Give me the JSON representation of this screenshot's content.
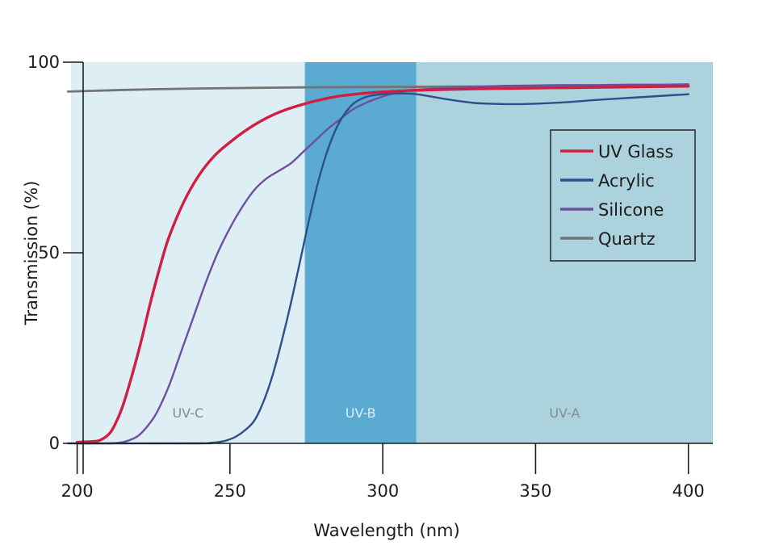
{
  "chart_data": {
    "type": "line",
    "title": "",
    "xlabel": "Wavelength (nm)",
    "ylabel": "Transmission (%)",
    "xlim": [
      198,
      408
    ],
    "ylim": [
      0,
      100
    ],
    "xticks": [
      200,
      250,
      300,
      350,
      400
    ],
    "yticks": [
      0,
      50,
      100
    ],
    "grid": false,
    "legend_position": "right",
    "regions": [
      {
        "label": "UV-C",
        "x_start": 198,
        "x_end": 274.5,
        "fill": "#ddeef5",
        "text_color": "#8a8a8a"
      },
      {
        "label": "UV-B",
        "x_start": 274.5,
        "x_end": 311,
        "fill": "#5aaad2",
        "text_color": "#ddeef6"
      },
      {
        "label": "UV-A",
        "x_start": 311,
        "x_end": 408,
        "fill": "#abd2dd",
        "text_color": "#7e8f95"
      }
    ],
    "series": [
      {
        "name": "UV Glass",
        "color": "#d01f41",
        "x": [
          200,
          205,
          207,
          209,
          211,
          213,
          215,
          218,
          221,
          224,
          227,
          230,
          235,
          240,
          245,
          250,
          255,
          260,
          265,
          270,
          275,
          280,
          285,
          290,
          295,
          300,
          310,
          320,
          330,
          340,
          350,
          360,
          370,
          380,
          390,
          400
        ],
        "y": [
          0.3,
          0.5,
          0.7,
          1.5,
          3,
          6,
          10,
          18,
          27,
          37,
          46,
          54,
          63.5,
          70.5,
          75.5,
          79,
          82,
          84.5,
          86.5,
          88,
          89.2,
          90.2,
          91,
          91.5,
          91.9,
          92.2,
          92.6,
          92.8,
          93,
          93.1,
          93.2,
          93.3,
          93.4,
          93.5,
          93.6,
          93.7
        ]
      },
      {
        "name": "Acrylic",
        "color": "#2d4f8e",
        "x": [
          197,
          240,
          243,
          246,
          249,
          252,
          255,
          258,
          261,
          264,
          267,
          270,
          273,
          276,
          279,
          282,
          285,
          288,
          291,
          295,
          300,
          305,
          310,
          315,
          320,
          325,
          330,
          335,
          340,
          345,
          350,
          360,
          370,
          380,
          390,
          400
        ],
        "y": [
          0,
          0,
          0.1,
          0.3,
          0.8,
          1.8,
          3.5,
          6,
          11,
          18,
          27,
          37,
          48,
          59,
          69,
          77,
          83,
          87,
          89.5,
          91,
          91.6,
          91.8,
          91.7,
          91.1,
          90.4,
          89.8,
          89.3,
          89.1,
          89,
          89,
          89.1,
          89.5,
          90.1,
          90.6,
          91.1,
          91.6
        ]
      },
      {
        "name": "Silicone",
        "color": "#6e4e9e",
        "x": [
          200,
          210,
          214,
          217,
          220,
          223,
          226,
          230,
          234,
          238,
          242,
          246,
          250,
          254,
          258,
          262,
          266,
          270,
          274,
          278,
          282,
          286,
          290,
          295,
          300,
          305,
          310,
          320,
          330,
          340,
          350,
          360,
          370,
          380,
          390,
          400
        ],
        "y": [
          0,
          0,
          0.2,
          0.8,
          2,
          4.5,
          8,
          15,
          24,
          33,
          42,
          50,
          56.5,
          62,
          66.5,
          69.5,
          71.5,
          73.5,
          76.5,
          79.5,
          82.5,
          85,
          87.5,
          89.5,
          91,
          92,
          92.7,
          93.2,
          93.5,
          93.8,
          93.9,
          94,
          94,
          94.1,
          94.1,
          94.2
        ]
      },
      {
        "name": "Quartz",
        "color": "#747474",
        "x": [
          197,
          210,
          225,
          250,
          275,
          300,
          325,
          350,
          375,
          400
        ],
        "y": [
          92.3,
          92.6,
          92.9,
          93.2,
          93.4,
          93.5,
          93.6,
          93.7,
          93.8,
          93.8
        ]
      }
    ]
  }
}
